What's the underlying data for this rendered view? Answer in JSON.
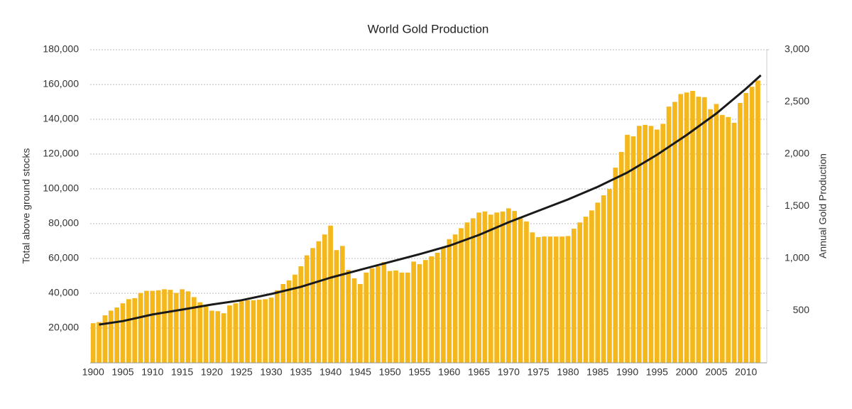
{
  "chart_data": {
    "type": "bar-line",
    "title": "World Gold Production",
    "ylabel": "Total above ground stocks",
    "y2label": "Annual Gold Production",
    "xlim": [
      1899.5,
      2013.5
    ],
    "xticks": [
      1900,
      1905,
      1910,
      1915,
      1920,
      1925,
      1930,
      1935,
      1940,
      1945,
      1950,
      1955,
      1960,
      1965,
      1970,
      1975,
      1980,
      1985,
      1990,
      1995,
      2000,
      2005,
      2010
    ],
    "ylim": [
      0,
      180000
    ],
    "yticks": [
      {
        "value": 20000,
        "label": "20,000"
      },
      {
        "value": 40000,
        "label": "40,000"
      },
      {
        "value": 60000,
        "label": "60,000"
      },
      {
        "value": 80000,
        "label": "80,000"
      },
      {
        "value": 100000,
        "label": "100,000"
      },
      {
        "value": 120000,
        "label": "120,000"
      },
      {
        "value": 140000,
        "label": "140,000"
      },
      {
        "value": 160000,
        "label": "160,000"
      },
      {
        "value": 180000,
        "label": "180,000"
      }
    ],
    "y2lim": [
      0,
      3000
    ],
    "y2ticks": [
      500,
      {
        "value": 1000,
        "label": "1,000"
      },
      {
        "value": 1500,
        "label": "1,500"
      },
      {
        "value": 2000,
        "label": "2,000"
      },
      {
        "value": 2500,
        "label": "2,500"
      },
      {
        "value": 3000,
        "label": "3,000"
      }
    ],
    "grid": true,
    "series": [
      {
        "type": "bar",
        "axis": "y2",
        "color": "#f4b71c",
        "x": [
          1900,
          1901,
          1902,
          1903,
          1904,
          1905,
          1906,
          1907,
          1908,
          1909,
          1910,
          1911,
          1912,
          1913,
          1914,
          1915,
          1916,
          1917,
          1918,
          1919,
          1920,
          1921,
          1922,
          1923,
          1924,
          1925,
          1926,
          1927,
          1928,
          1929,
          1930,
          1931,
          1932,
          1933,
          1934,
          1935,
          1936,
          1937,
          1938,
          1939,
          1940,
          1941,
          1942,
          1943,
          1944,
          1945,
          1946,
          1947,
          1948,
          1949,
          1950,
          1951,
          1952,
          1953,
          1954,
          1955,
          1956,
          1957,
          1958,
          1959,
          1960,
          1961,
          1962,
          1963,
          1964,
          1965,
          1966,
          1967,
          1968,
          1969,
          1970,
          1971,
          1972,
          1973,
          1974,
          1975,
          1976,
          1977,
          1978,
          1979,
          1980,
          1981,
          1982,
          1983,
          1984,
          1985,
          1986,
          1987,
          1988,
          1989,
          1990,
          1991,
          1992,
          1993,
          1994,
          1995,
          1996,
          1997,
          1998,
          1999,
          2000,
          2001,
          2002,
          2003,
          2004,
          2005,
          2006,
          2007,
          2008,
          2009,
          2010,
          2011,
          2012
        ],
        "values": [
          380,
          390,
          455,
          500,
          530,
          570,
          610,
          620,
          670,
          690,
          690,
          695,
          705,
          700,
          670,
          705,
          685,
          630,
          580,
          540,
          500,
          495,
          475,
          550,
          570,
          590,
          600,
          600,
          605,
          610,
          625,
          695,
          755,
          790,
          845,
          925,
          1030,
          1100,
          1165,
          1230,
          1315,
          1080,
          1120,
          890,
          810,
          755,
          865,
          905,
          925,
          965,
          880,
          885,
          865,
          865,
          970,
          945,
          985,
          1020,
          1055,
          1110,
          1185,
          1230,
          1290,
          1345,
          1385,
          1440,
          1450,
          1420,
          1440,
          1450,
          1480,
          1455,
          1385,
          1355,
          1250,
          1205,
          1210,
          1210,
          1210,
          1210,
          1215,
          1285,
          1345,
          1400,
          1460,
          1535,
          1605,
          1665,
          1870,
          2020,
          2185,
          2170,
          2270,
          2280,
          2270,
          2235,
          2290,
          2455,
          2500,
          2575,
          2590,
          2605,
          2550,
          2545,
          2430,
          2480,
          2375,
          2355,
          2300,
          2490,
          2585,
          2645,
          2705
        ]
      },
      {
        "type": "line",
        "axis": "y",
        "color": "#1a1a1a",
        "x": [
          1901,
          1905,
          1910,
          1915,
          1920,
          1925,
          1930,
          1935,
          1940,
          1945,
          1950,
          1955,
          1960,
          1965,
          1970,
          1975,
          1980,
          1985,
          1990,
          1995,
          2000,
          2005,
          2010,
          2012.5
        ],
        "values": [
          22000,
          24000,
          27800,
          30600,
          33500,
          36000,
          39600,
          43700,
          49000,
          53500,
          58000,
          62500,
          67300,
          73500,
          80800,
          87400,
          93900,
          101200,
          109400,
          119600,
          131000,
          143300,
          157600,
          165300
        ]
      }
    ]
  }
}
